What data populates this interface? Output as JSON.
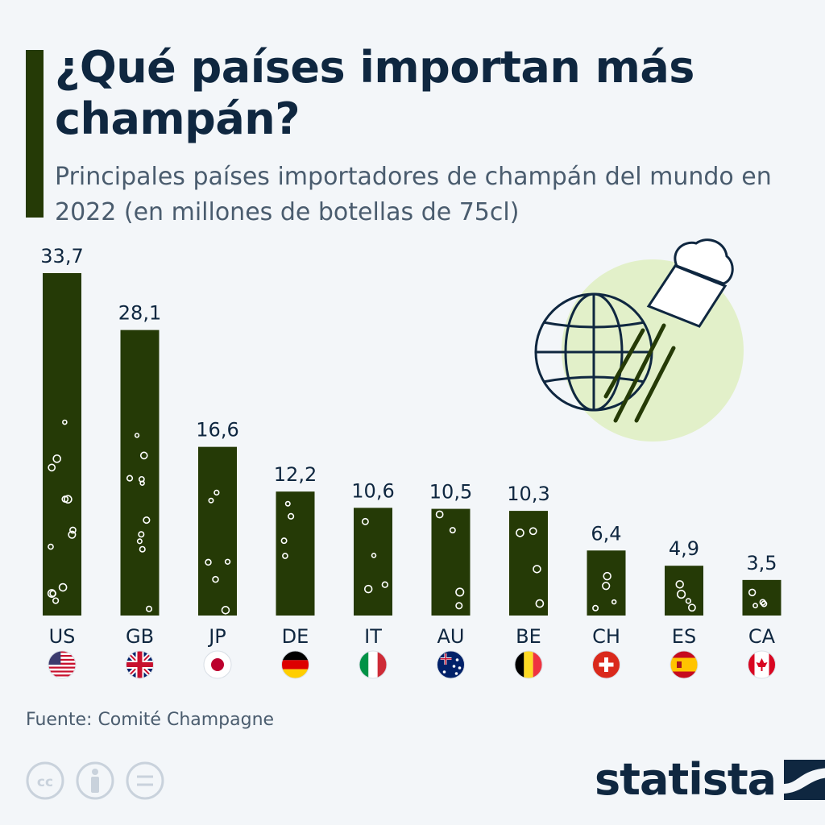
{
  "title": "¿Qué países importan más champán?",
  "subtitle": "Principales países importadores de champán del mundo en 2022 (en millones de botellas de 75cl)",
  "source": "Fuente: Comité Champagne",
  "brand": "statista",
  "icons": [
    "creative-commons-icon",
    "attribution-icon",
    "no-derivatives-icon",
    "globe-cork-illustration"
  ],
  "colors": {
    "bar": "#253a06",
    "text_dark": "#0f2740",
    "text_muted": "#4a5c6e",
    "background": "#f3f6f9",
    "illustration_circle": "#e2f0c9"
  },
  "chart_data": {
    "type": "bar",
    "categories": [
      "US",
      "GB",
      "JP",
      "DE",
      "IT",
      "AU",
      "BE",
      "CH",
      "ES",
      "CA"
    ],
    "values": [
      33.7,
      28.1,
      16.6,
      12.2,
      10.6,
      10.5,
      10.3,
      6.4,
      4.9,
      3.5
    ],
    "value_labels": [
      "33,7",
      "28,1",
      "16,6",
      "12,2",
      "10,6",
      "10,5",
      "10,3",
      "6,4",
      "4,9",
      "3,5"
    ],
    "flags": [
      "us-flag",
      "gb-flag",
      "jp-flag",
      "de-flag",
      "it-flag",
      "au-flag",
      "be-flag",
      "ch-flag",
      "es-flag",
      "ca-flag"
    ],
    "title": "",
    "xlabel": "",
    "ylabel": "",
    "ylim": [
      0,
      33.7
    ],
    "grid": false,
    "legend": "none"
  }
}
